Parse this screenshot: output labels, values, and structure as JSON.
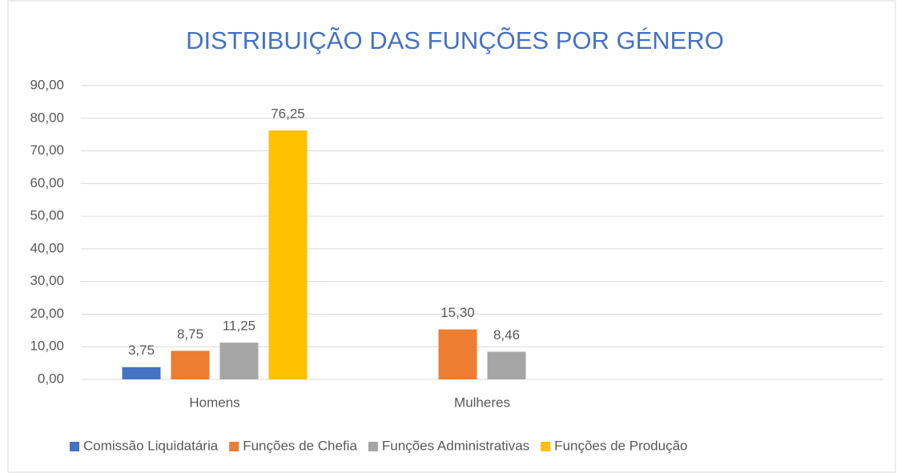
{
  "chart_data": {
    "type": "bar",
    "title": "DISTRIBUIÇÃO DAS FUNÇÕES POR GÉNERO",
    "categories": [
      "Homens",
      "Mulheres",
      null
    ],
    "series": [
      {
        "name": "Comissão Liquidatária",
        "color": "#4472c4",
        "values": [
          3.75,
          null,
          null
        ],
        "value_labels": [
          "3,75",
          null,
          null
        ]
      },
      {
        "name": "Funções de Chefia",
        "color": "#ed7d31",
        "values": [
          8.75,
          15.3,
          null
        ],
        "value_labels": [
          "8,75",
          "15,30",
          null
        ]
      },
      {
        "name": "Funções Administrativas",
        "color": "#a5a5a5",
        "values": [
          11.25,
          8.46,
          null
        ],
        "value_labels": [
          "11,25",
          "8,46",
          null
        ]
      },
      {
        "name": "Funções de Produção",
        "color": "#ffc000",
        "values": [
          76.25,
          null,
          null
        ],
        "value_labels": [
          "76,25",
          null,
          null
        ]
      }
    ],
    "ylim": [
      0,
      90
    ],
    "yticks": [
      {
        "value": 0,
        "label": "0,00"
      },
      {
        "value": 10,
        "label": "10,00"
      },
      {
        "value": 20,
        "label": "20,00"
      },
      {
        "value": 30,
        "label": "30,00"
      },
      {
        "value": 40,
        "label": "40,00"
      },
      {
        "value": 50,
        "label": "50,00"
      },
      {
        "value": 60,
        "label": "60,00"
      },
      {
        "value": 70,
        "label": "70,00"
      },
      {
        "value": 80,
        "label": "80,00"
      },
      {
        "value": 90,
        "label": "90,00"
      }
    ],
    "grid": true,
    "legend": "bottom"
  }
}
